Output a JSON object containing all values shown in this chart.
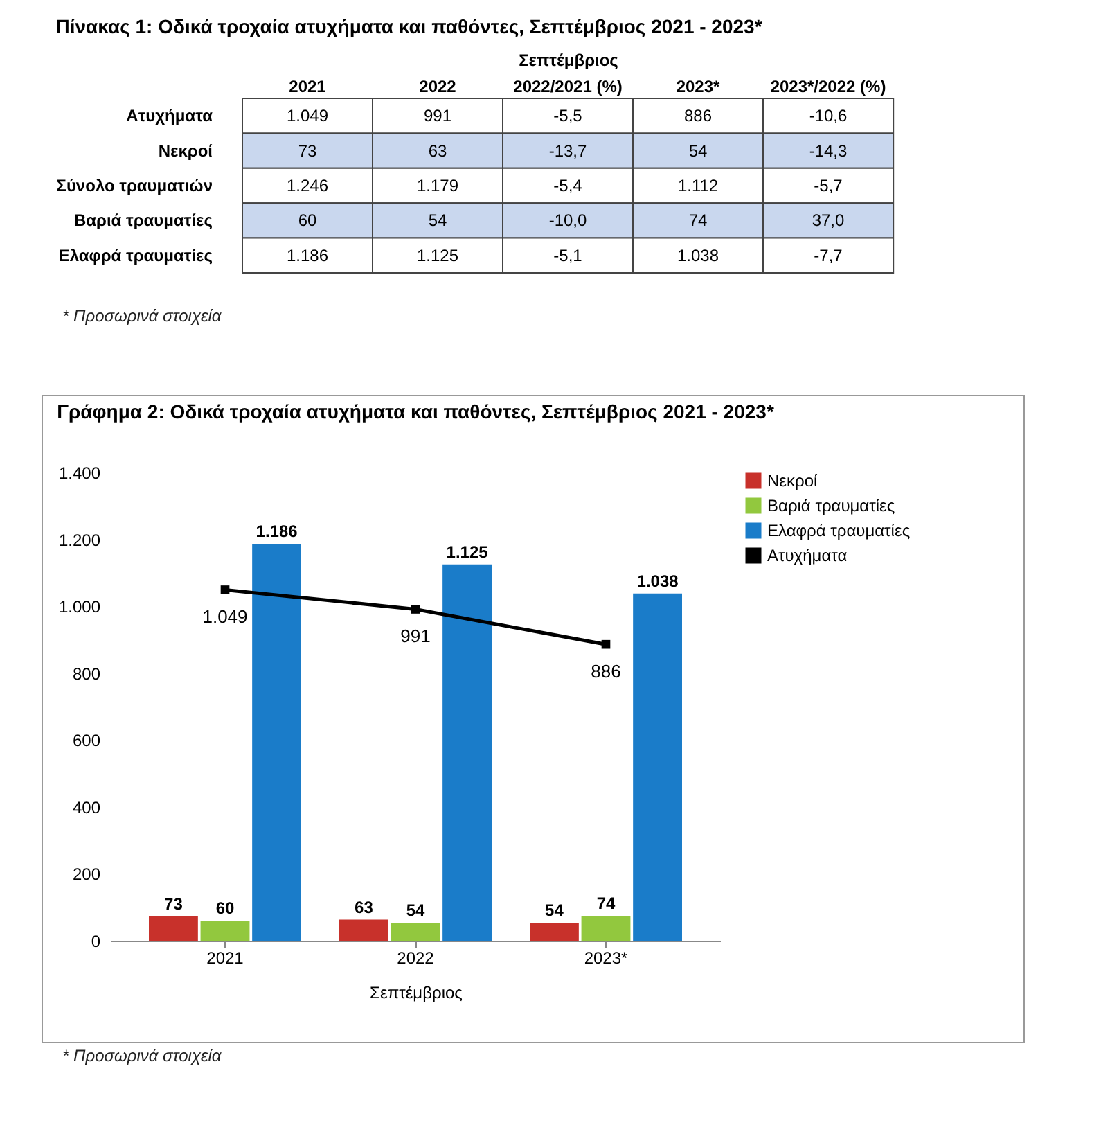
{
  "chart_data": [
    {
      "type": "other",
      "title": "Πίνακας 1: Οδικά τροχαία ατυχήματα και παθόντες, Σεπτέμβριος 2021 - 2023*",
      "xlabel": "Σεπτέμβριος",
      "categories": [
        "2021",
        "2022",
        "2022/2021 (%)",
        "2023*",
        "2023*/2022 (%)"
      ],
      "y_categories": [
        "Ατυχήματα",
        "Νεκροί",
        "Σύνολο τραυματιών",
        "Βαριά τραυματίες",
        "Ελαφρά τραυματίες"
      ],
      "cell_labels": [
        [
          "1.049",
          "991",
          "-5,5",
          "886",
          "-10,6"
        ],
        [
          "73",
          "63",
          "-13,7",
          "54",
          "-14,3"
        ],
        [
          "1.246",
          "1.179",
          "-5,4",
          "1.112",
          "-5,7"
        ],
        [
          "60",
          "54",
          "-10,0",
          "74",
          "37,0"
        ],
        [
          "1.186",
          "1.125",
          "-5,1",
          "1.038",
          "-7,7"
        ]
      ],
      "annotations": [
        "* Προσωρινά στοιχεία"
      ]
    },
    {
      "type": "bar",
      "title": "Γράφημα 2: Οδικά τροχαία ατυχήματα και παθόντες, Σεπτέμβριος 2021 - 2023*",
      "xlabel": "Σεπτέμβριος",
      "categories": [
        "2021",
        "2022",
        "2023*"
      ],
      "series": [
        {
          "name": "Νεκροί",
          "color": "#c8312b",
          "values": [
            73,
            63,
            54
          ],
          "value_labels": [
            "73",
            "63",
            "54"
          ]
        },
        {
          "name": "Βαριά τραυματίες",
          "color": "#92c83e",
          "values": [
            60,
            54,
            74
          ],
          "value_labels": [
            "60",
            "54",
            "74"
          ]
        },
        {
          "name": "Ελαφρά τραυματίες",
          "color": "#1a7cc9",
          "values": [
            1186,
            1125,
            1038
          ],
          "value_labels": [
            "1.186",
            "1.125",
            "1.038"
          ]
        },
        {
          "name": "Ατυχήματα",
          "type": "line",
          "color": "#000000",
          "values": [
            1049,
            991,
            886
          ],
          "value_labels": [
            "1.049",
            "991",
            "886"
          ]
        }
      ],
      "marker": "square",
      "legend": "right",
      "ylim": [
        0,
        1400
      ],
      "yticks": [
        {
          "value": 0,
          "label": "0"
        },
        {
          "value": 200,
          "label": "200"
        },
        {
          "value": 400,
          "label": "400"
        },
        {
          "value": 600,
          "label": "600"
        },
        {
          "value": 800,
          "label": "800"
        },
        {
          "value": 1000,
          "label": "1.000"
        },
        {
          "value": 1200,
          "label": "1.200"
        },
        {
          "value": 1400,
          "label": "1.400"
        }
      ],
      "annotations": [
        "* Προσωρινά στοιχεία"
      ]
    }
  ]
}
